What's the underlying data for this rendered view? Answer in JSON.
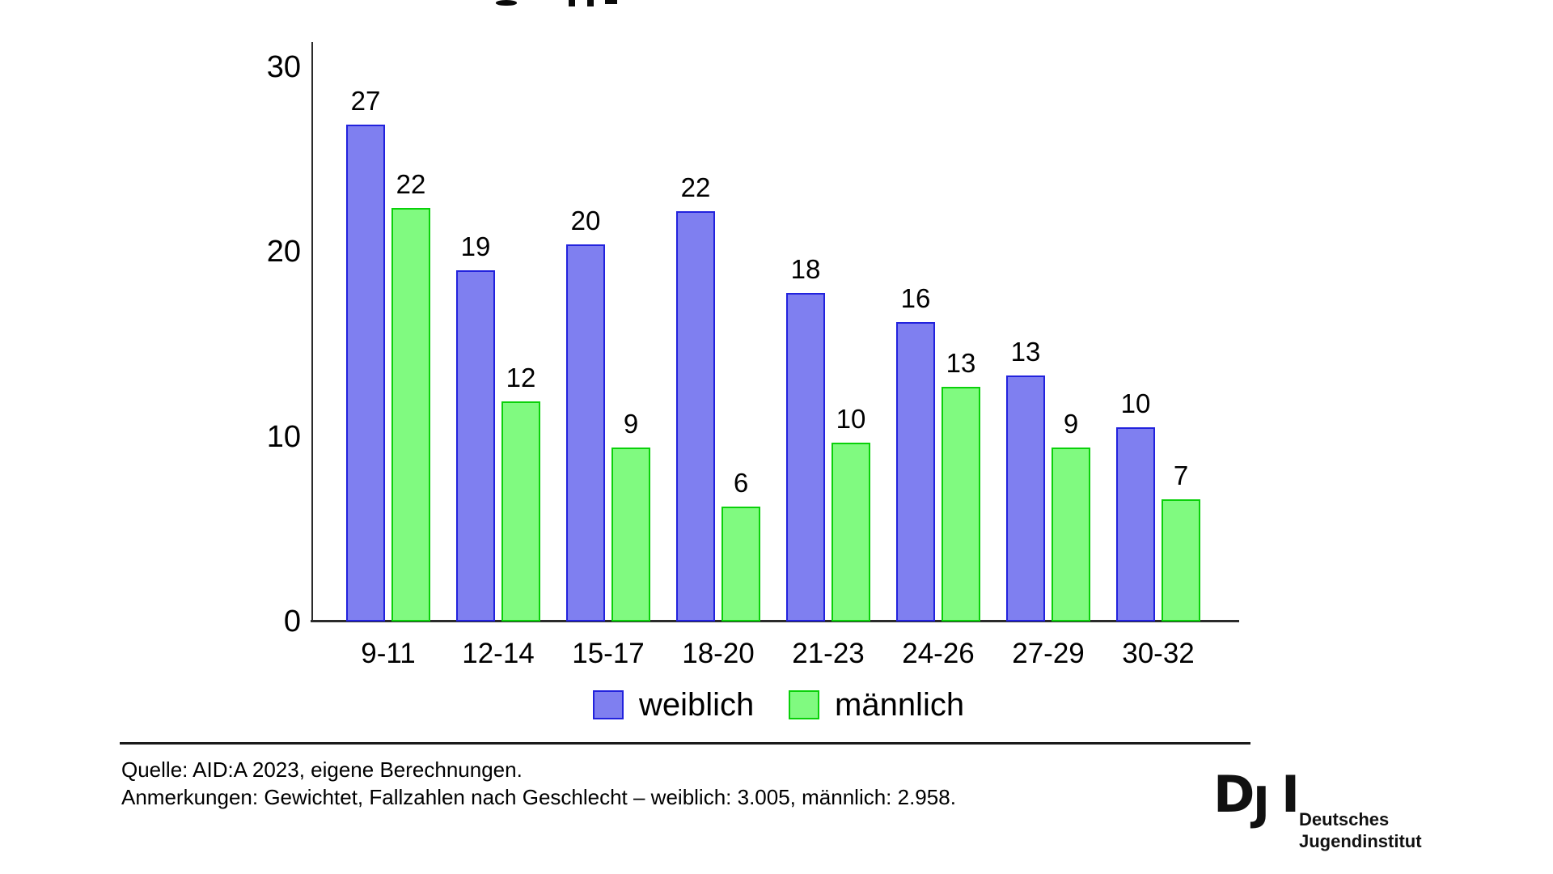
{
  "colors": {
    "background": "#ffffff",
    "axis": "#2b2b2b",
    "text": "#000000",
    "weiblich_fill": "#7f7ff0",
    "weiblich_border": "#2222dd",
    "maennlich_fill": "#80fa80",
    "maennlich_border": "#0ad10a"
  },
  "chart_data": {
    "type": "bar",
    "categories": [
      "9-11",
      "12-14",
      "15-17",
      "18-20",
      "21-23",
      "24-26",
      "27-29",
      "30-32"
    ],
    "series": [
      {
        "name": "weiblich",
        "values": [
          27,
          19,
          20,
          22,
          18,
          16,
          13,
          10
        ],
        "bar_heights_units": [
          26.9,
          19.0,
          20.4,
          22.2,
          17.8,
          16.2,
          13.3,
          10.5
        ]
      },
      {
        "name": "männlich",
        "values": [
          22,
          12,
          9,
          6,
          10,
          13,
          9,
          7
        ],
        "bar_heights_units": [
          22.4,
          11.9,
          9.4,
          6.2,
          9.7,
          12.7,
          9.4,
          6.6
        ]
      }
    ],
    "ylim": [
      0,
      30
    ],
    "yticks": [
      0,
      10,
      20,
      30
    ],
    "grid": false,
    "legend_position": "bottom",
    "xlabel": "",
    "ylabel": ""
  },
  "legend": {
    "items": [
      {
        "label": "weiblich"
      },
      {
        "label": "männlich"
      }
    ]
  },
  "footer": {
    "source_line": "Quelle: AID:A 2023, eigene Berechnungen.",
    "notes_line": "Anmerkungen: Gewichtet, Fallzahlen nach Geschlecht – weiblich: 3.005, männlich: 2.958."
  },
  "logo": {
    "letter_d": "D",
    "letter_j": "J",
    "letter_i": "I",
    "name_line1": "Deutsches",
    "name_line2": "Jugendinstitut"
  }
}
